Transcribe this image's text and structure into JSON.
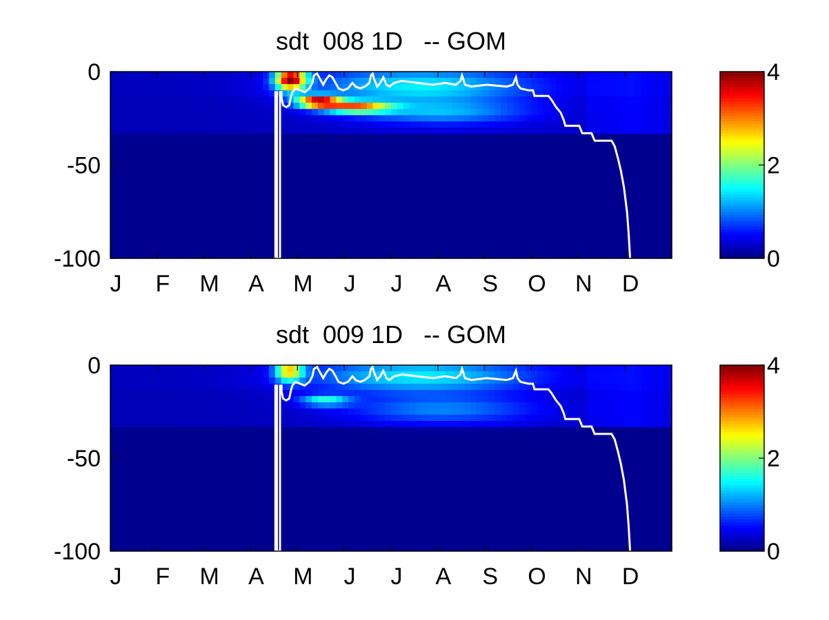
{
  "chart_data": [
    {
      "type": "heatmap",
      "title": "sdt  008 1D   -- GOM",
      "xlabel": "",
      "ylabel": "",
      "x_tick_labels": [
        "J",
        "F",
        "M",
        "A",
        "M",
        "J",
        "J",
        "A",
        "S",
        "O",
        "N",
        "D"
      ],
      "y_tick_labels": [
        "0",
        "-50",
        "-100"
      ],
      "y_ticks": [
        0,
        -50,
        -100
      ],
      "ylim": [
        -100,
        0
      ],
      "xlim": [
        1,
        365
      ],
      "colorbar": {
        "colormap": "jet",
        "range": [
          0,
          4
        ],
        "tick_labels": [
          "4",
          "2",
          "0"
        ],
        "ticks": [
          4,
          2,
          0
        ]
      },
      "grid": false,
      "blooms": [
        {
          "day": 118,
          "depth": -4,
          "sd": [
            10,
            6
          ],
          "value": 3.6
        },
        {
          "day": 136,
          "depth": -16,
          "sd": [
            14,
            3
          ],
          "value": 3.4
        },
        {
          "day": 160,
          "depth": -19,
          "sd": [
            22,
            3
          ],
          "value": 2.5
        },
        {
          "day": 200,
          "depth": -8,
          "sd": [
            70,
            10
          ],
          "value": 1.1
        },
        {
          "day": 215,
          "depth": -22,
          "sd": [
            55,
            6
          ],
          "value": 0.8
        }
      ],
      "white_line": [
        [
          108,
          -100
        ],
        [
          108,
          -11
        ],
        [
          109,
          -11
        ],
        [
          109,
          -100
        ],
        [
          111,
          -100
        ],
        [
          111,
          -11
        ],
        [
          112,
          -11
        ],
        [
          112,
          -14
        ],
        [
          113,
          -18
        ],
        [
          115,
          -19
        ],
        [
          117,
          -18
        ],
        [
          118,
          -14
        ],
        [
          119,
          -11
        ],
        [
          121,
          -9
        ],
        [
          124,
          -10
        ],
        [
          127,
          -11
        ],
        [
          130,
          -9
        ],
        [
          132,
          -6
        ],
        [
          133,
          -2
        ],
        [
          135,
          -1
        ],
        [
          137,
          -4
        ],
        [
          139,
          -7
        ],
        [
          141,
          -4
        ],
        [
          143,
          -2
        ],
        [
          145,
          -3
        ],
        [
          147,
          -6
        ],
        [
          149,
          -9
        ],
        [
          152,
          -10
        ],
        [
          155,
          -9
        ],
        [
          158,
          -6
        ],
        [
          160,
          -8
        ],
        [
          163,
          -9
        ],
        [
          166,
          -8
        ],
        [
          169,
          -6
        ],
        [
          170,
          -2
        ],
        [
          171,
          -1
        ],
        [
          172,
          -4
        ],
        [
          174,
          -8
        ],
        [
          176,
          -6
        ],
        [
          178,
          -3
        ],
        [
          180,
          -7
        ],
        [
          182,
          -8
        ],
        [
          185,
          -6
        ],
        [
          190,
          -5
        ],
        [
          200,
          -6
        ],
        [
          210,
          -7
        ],
        [
          218,
          -6
        ],
        [
          225,
          -7
        ],
        [
          228,
          -5
        ],
        [
          229,
          -2
        ],
        [
          231,
          -7
        ],
        [
          235,
          -8
        ],
        [
          245,
          -7
        ],
        [
          258,
          -8
        ],
        [
          262,
          -7
        ],
        [
          263,
          -5
        ],
        [
          264,
          -3
        ],
        [
          265,
          -7
        ],
        [
          267,
          -9
        ],
        [
          272,
          -10
        ],
        [
          275,
          -10
        ],
        [
          276,
          -13
        ],
        [
          285,
          -13
        ],
        [
          287,
          -15
        ],
        [
          290,
          -19
        ],
        [
          293,
          -22
        ],
        [
          295,
          -26
        ],
        [
          296,
          -29
        ],
        [
          305,
          -29
        ],
        [
          307,
          -33
        ],
        [
          313,
          -33
        ],
        [
          315,
          -37
        ],
        [
          326,
          -37
        ],
        [
          328,
          -40
        ],
        [
          330,
          -46
        ],
        [
          332,
          -53
        ],
        [
          334,
          -62
        ],
        [
          336,
          -75
        ],
        [
          337,
          -86
        ],
        [
          338,
          -100
        ]
      ]
    },
    {
      "type": "heatmap",
      "title": "sdt  009 1D   -- GOM",
      "xlabel": "",
      "ylabel": "",
      "x_tick_labels": [
        "J",
        "F",
        "M",
        "A",
        "M",
        "J",
        "J",
        "A",
        "S",
        "O",
        "N",
        "D"
      ],
      "y_tick_labels": [
        "0",
        "-50",
        "-100"
      ],
      "y_ticks": [
        0,
        -50,
        -100
      ],
      "ylim": [
        -100,
        0
      ],
      "xlim": [
        1,
        365
      ],
      "colorbar": {
        "colormap": "jet",
        "range": [
          0,
          4
        ],
        "tick_labels": [
          "4",
          "2",
          "0"
        ],
        "ticks": [
          4,
          2,
          0
        ]
      },
      "grid": false,
      "blooms": [
        {
          "day": 117,
          "depth": -3,
          "sd": [
            9,
            6
          ],
          "value": 2.3
        },
        {
          "day": 140,
          "depth": -19,
          "sd": [
            16,
            3
          ],
          "value": 1.3
        },
        {
          "day": 200,
          "depth": -6,
          "sd": [
            70,
            9
          ],
          "value": 1.1
        },
        {
          "day": 215,
          "depth": -24,
          "sd": [
            60,
            7
          ],
          "value": 0.7
        }
      ],
      "white_line": [
        [
          108,
          -100
        ],
        [
          108,
          -11
        ],
        [
          109,
          -11
        ],
        [
          109,
          -100
        ],
        [
          111,
          -100
        ],
        [
          111,
          -11
        ],
        [
          112,
          -11
        ],
        [
          112,
          -14
        ],
        [
          113,
          -18
        ],
        [
          115,
          -19
        ],
        [
          117,
          -18
        ],
        [
          118,
          -14
        ],
        [
          119,
          -11
        ],
        [
          121,
          -9
        ],
        [
          124,
          -10
        ],
        [
          127,
          -11
        ],
        [
          130,
          -9
        ],
        [
          132,
          -6
        ],
        [
          133,
          -2
        ],
        [
          135,
          -1
        ],
        [
          137,
          -4
        ],
        [
          139,
          -7
        ],
        [
          141,
          -4
        ],
        [
          143,
          -2
        ],
        [
          145,
          -3
        ],
        [
          147,
          -6
        ],
        [
          149,
          -9
        ],
        [
          152,
          -10
        ],
        [
          155,
          -9
        ],
        [
          158,
          -6
        ],
        [
          160,
          -8
        ],
        [
          163,
          -9
        ],
        [
          166,
          -8
        ],
        [
          169,
          -6
        ],
        [
          170,
          -2
        ],
        [
          171,
          -1
        ],
        [
          172,
          -4
        ],
        [
          174,
          -8
        ],
        [
          176,
          -6
        ],
        [
          178,
          -3
        ],
        [
          180,
          -7
        ],
        [
          182,
          -8
        ],
        [
          185,
          -6
        ],
        [
          190,
          -5
        ],
        [
          200,
          -6
        ],
        [
          210,
          -7
        ],
        [
          218,
          -6
        ],
        [
          225,
          -7
        ],
        [
          228,
          -5
        ],
        [
          229,
          -2
        ],
        [
          231,
          -7
        ],
        [
          235,
          -8
        ],
        [
          245,
          -7
        ],
        [
          258,
          -8
        ],
        [
          262,
          -7
        ],
        [
          263,
          -5
        ],
        [
          264,
          -3
        ],
        [
          265,
          -7
        ],
        [
          267,
          -9
        ],
        [
          272,
          -10
        ],
        [
          275,
          -10
        ],
        [
          276,
          -13
        ],
        [
          285,
          -13
        ],
        [
          287,
          -15
        ],
        [
          290,
          -19
        ],
        [
          293,
          -22
        ],
        [
          295,
          -26
        ],
        [
          296,
          -29
        ],
        [
          305,
          -29
        ],
        [
          307,
          -33
        ],
        [
          313,
          -33
        ],
        [
          315,
          -37
        ],
        [
          326,
          -37
        ],
        [
          328,
          -40
        ],
        [
          330,
          -46
        ],
        [
          332,
          -53
        ],
        [
          334,
          -62
        ],
        [
          336,
          -75
        ],
        [
          337,
          -86
        ],
        [
          338,
          -100
        ]
      ]
    }
  ]
}
